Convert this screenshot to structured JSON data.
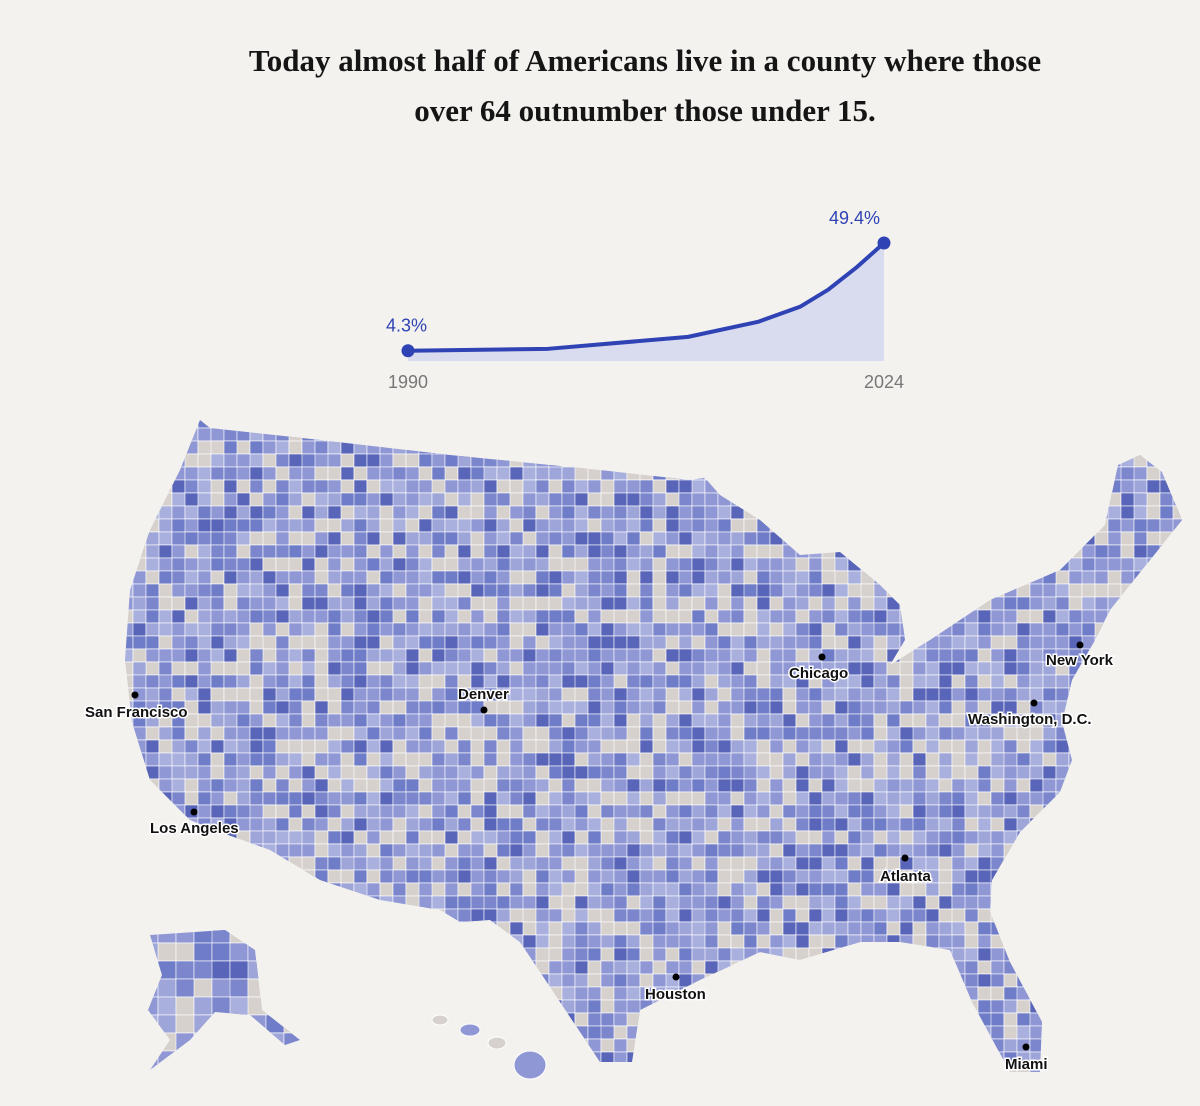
{
  "chart_data": {
    "type": "line",
    "title": "Today almost half of Americans live in a county where those over 64 outnumber those under 15.",
    "x": [
      1990,
      2000,
      2010,
      2015,
      2018,
      2020,
      2022,
      2024
    ],
    "series": [
      {
        "color": "#2f43b5",
        "values": [
          4.3,
          5.1,
          10.1,
          16.4,
          22.7,
          29.8,
          39,
          49.4
        ],
        "value_labels": [
          "4.3%",
          null,
          null,
          null,
          null,
          null,
          null,
          "49.4%"
        ]
      }
    ],
    "xlim": [
      1990,
      2024
    ],
    "xticks": [
      1990,
      2024
    ],
    "ylim": [
      0,
      49.4
    ],
    "area_color": "#d9dbef"
  },
  "map": {
    "cities": [
      "San Francisco",
      "Los Angeles",
      "Denver",
      "Chicago",
      "New York",
      "Washington, D.C.",
      "Atlanta",
      "Houston",
      "Miami"
    ]
  }
}
